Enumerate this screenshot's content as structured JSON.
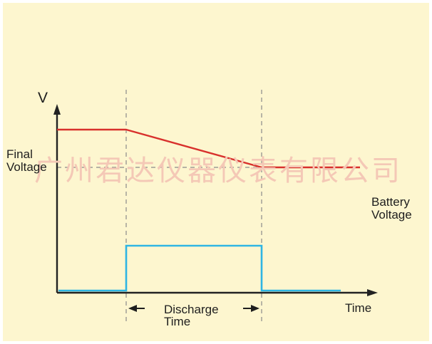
{
  "diagram": {
    "y_axis_label": "V",
    "x_axis_label": "Time",
    "final_voltage_label_line1": "Final",
    "final_voltage_label_line2": "Voltage",
    "battery_voltage_label_line1": "Battery",
    "battery_voltage_label_line2": "Voltage",
    "discharge_time_label_line1": "Discharge",
    "discharge_time_label_line2": "Time",
    "watermark": "广州君达仪器仪表有限公司",
    "colors": {
      "background_panel": "#fdf6cf",
      "axis": "#222222",
      "battery_voltage_line": "#d8302c",
      "discharge_signal_line": "#2fb5e3",
      "guide_lines": "#8a8a8a",
      "watermark": "#f4c8b6"
    }
  }
}
